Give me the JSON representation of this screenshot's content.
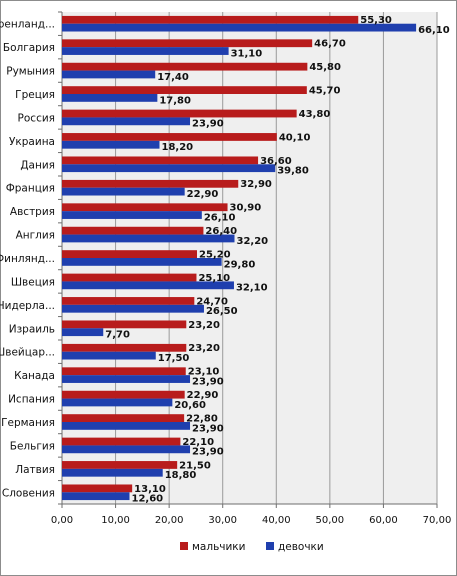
{
  "chart_data": {
    "type": "bar",
    "orientation": "horizontal",
    "categories": [
      "Гренланд...",
      "Болгария",
      "Румыния",
      "Греция",
      "Россия",
      "Украина",
      "Дания",
      "Франция",
      "Австрия",
      "Англия",
      "Финлянд...",
      "Швеция",
      "Нидерла...",
      "Израиль",
      "Швейцар...",
      "Канада",
      "Испания",
      "Германия",
      "Бельгия",
      "Латвия",
      "Словения"
    ],
    "series": [
      {
        "name": "мальчики",
        "color": "#b81c1c",
        "values": [
          55.3,
          46.7,
          45.8,
          45.7,
          43.8,
          40.1,
          36.6,
          32.9,
          30.9,
          26.4,
          25.2,
          25.1,
          24.7,
          23.2,
          23.2,
          23.1,
          22.9,
          22.8,
          22.1,
          21.5,
          13.1
        ],
        "labels": [
          "55,30",
          "46,70",
          "45,80",
          "45,70",
          "43,80",
          "40,10",
          "36,60",
          "32,90",
          "30,90",
          "26,40",
          "25,20",
          "25,10",
          "24,70",
          "23,20",
          "23,20",
          "23,10",
          "22,90",
          "22,80",
          "22,10",
          "21,50",
          "13,10"
        ]
      },
      {
        "name": "девочки",
        "color": "#1f3fae",
        "values": [
          66.1,
          31.1,
          17.4,
          17.8,
          23.9,
          18.2,
          39.8,
          22.9,
          26.1,
          32.2,
          29.8,
          32.1,
          26.5,
          7.7,
          17.5,
          23.9,
          20.6,
          23.9,
          23.9,
          18.8,
          12.6
        ],
        "labels": [
          "66,10",
          "31,10",
          "17,40",
          "17,80",
          "23,90",
          "18,20",
          "39,80",
          "22,90",
          "26,10",
          "32,20",
          "29,80",
          "32,10",
          "26,50",
          "7,70",
          "17,50",
          "23,90",
          "20,60",
          "23,90",
          "23,90",
          "18,80",
          "12,60"
        ]
      }
    ],
    "xlim": [
      0,
      70
    ],
    "xticks": [
      "0,00",
      "10,00",
      "20,00",
      "30,00",
      "40,00",
      "50,00",
      "60,00",
      "70,00"
    ],
    "grid": "vertical",
    "legend_position": "bottom-center"
  }
}
